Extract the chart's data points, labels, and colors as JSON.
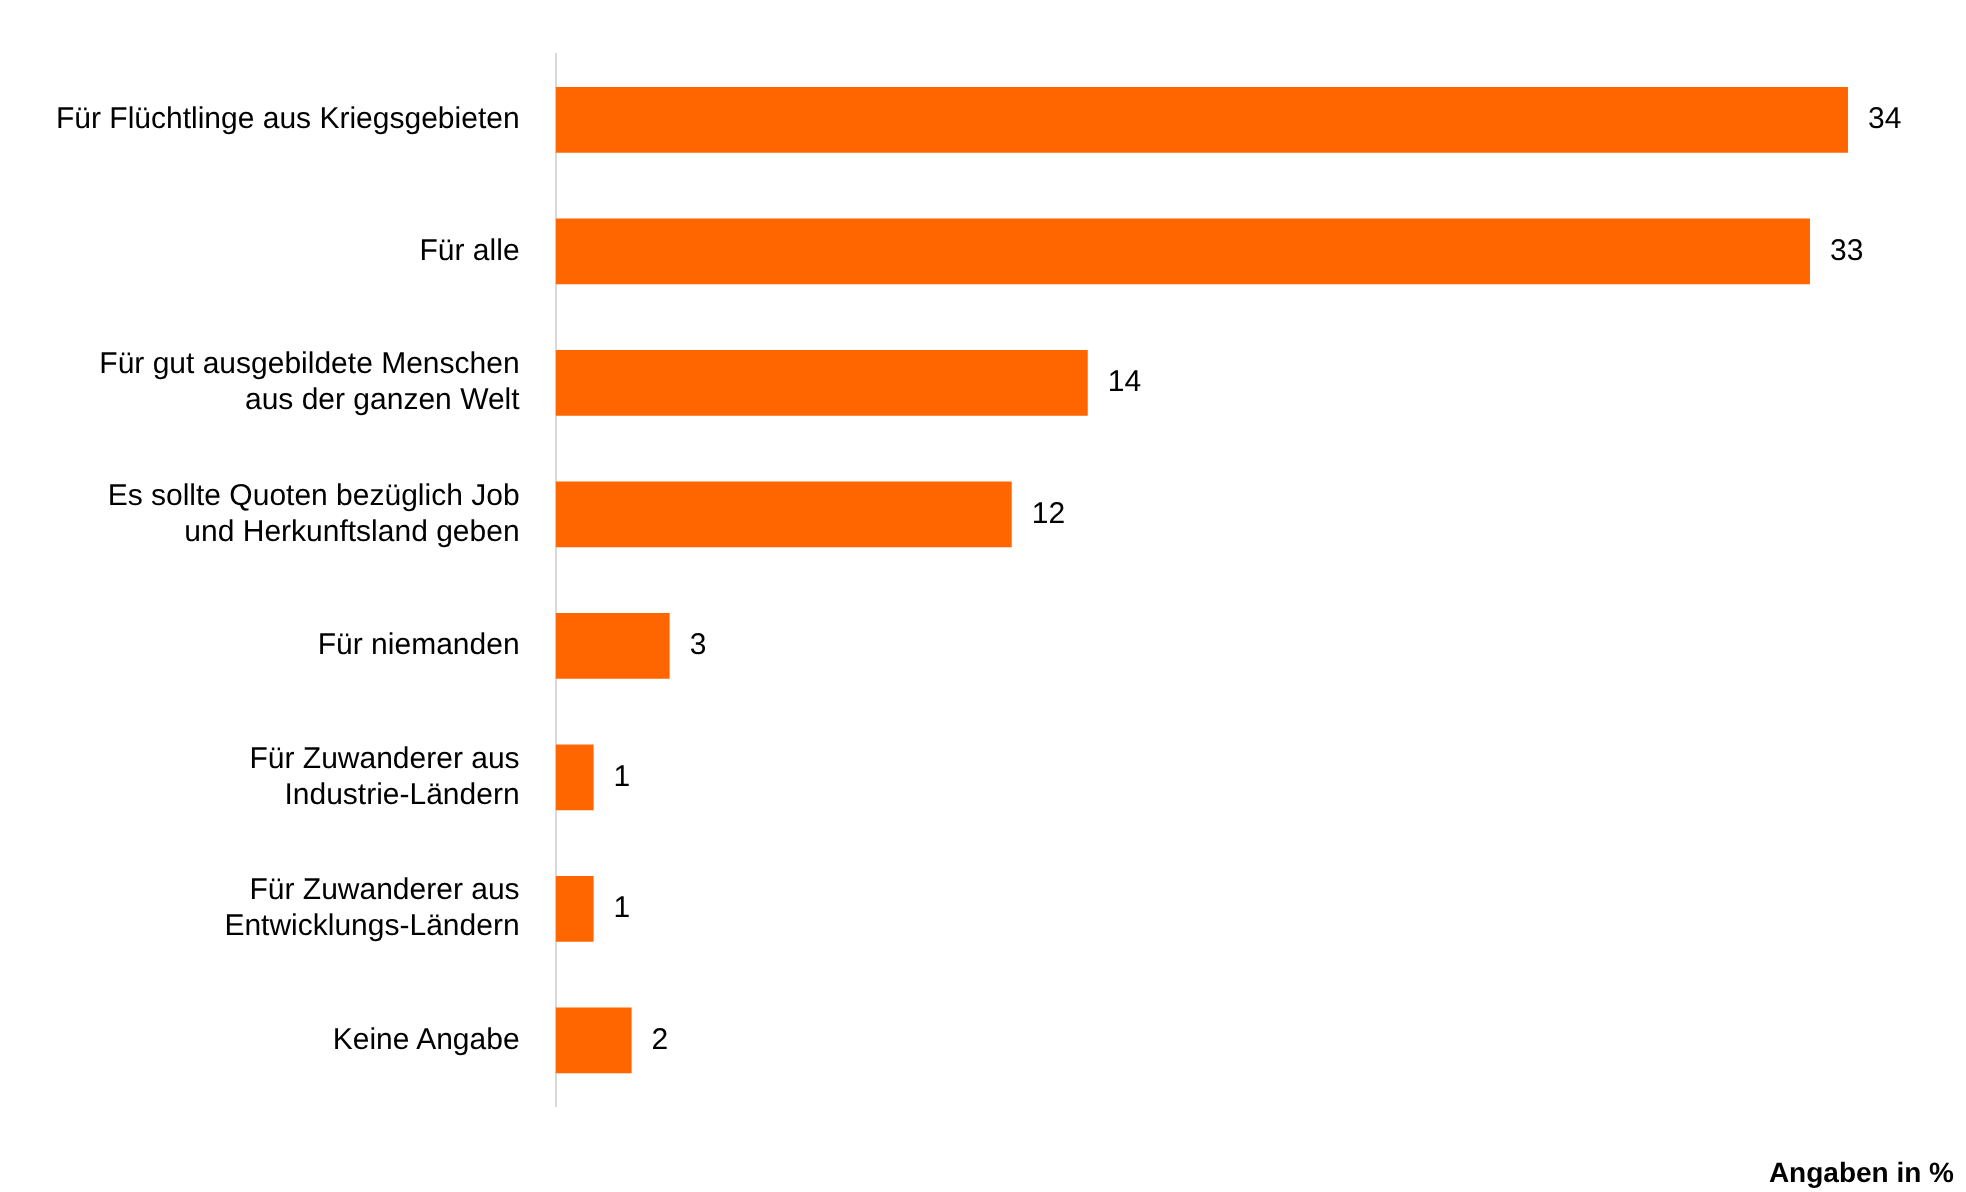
{
  "chart_data": {
    "type": "bar",
    "orientation": "horizontal",
    "categories": [
      "Für Flüchtlinge aus Kriegsgebieten",
      "Für alle",
      "Für gut ausgebildete Menschen aus der ganzen Welt",
      "Es sollte Quoten bezüglich Job und Herkunftsland geben",
      "Für niemanden",
      "Für Zuwanderer aus Industrie-Ländern",
      "Für Zuwanderer aus Entwicklungs-Ländern",
      "Keine Angabe"
    ],
    "values": [
      34,
      33,
      14,
      12,
      3,
      1,
      1,
      2
    ],
    "color": "#ff6600",
    "tick_labels": "y",
    "legend": false,
    "data_labels": true,
    "annotations": [
      "Angaben in %"
    ]
  }
}
